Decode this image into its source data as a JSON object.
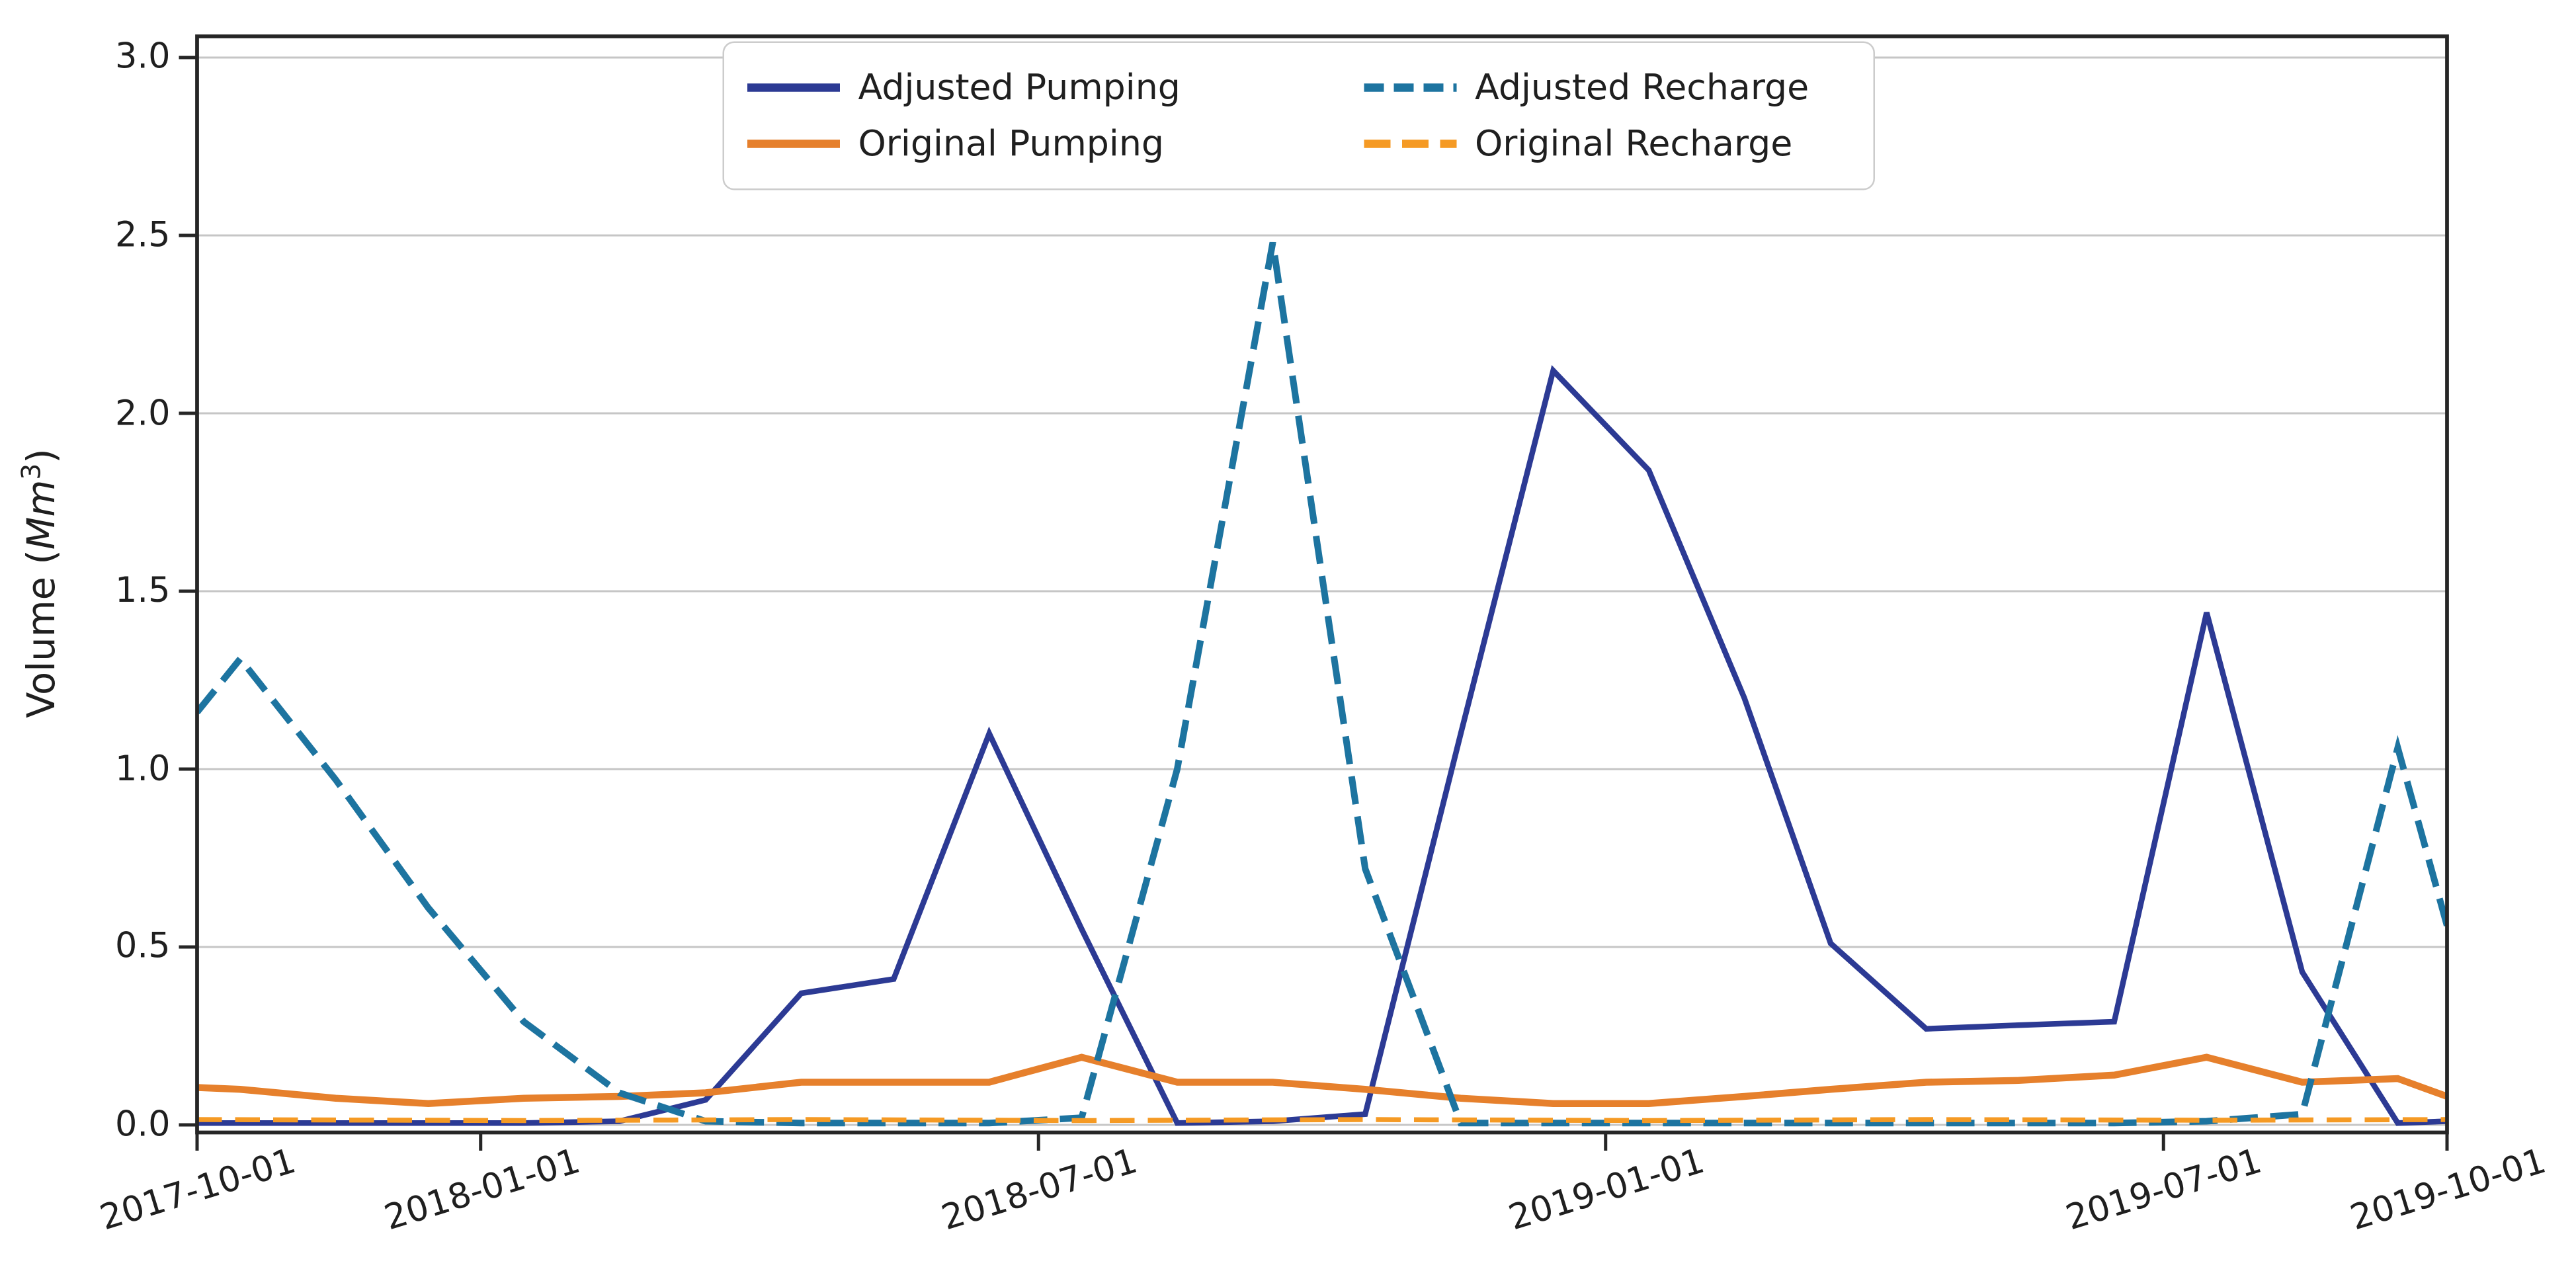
{
  "figure": {
    "background_color": "#ffffff",
    "text_color": "#1f1f1f",
    "spine_color": "#262626",
    "grid_color": "#c6c6c6"
  },
  "chart_data": {
    "type": "line",
    "title": "",
    "xlabel": "",
    "ylabel": "Volume (Mm³)",
    "ylabel_parts": {
      "prefix": "Volume (",
      "math": "Mm",
      "sup": "3",
      "suffix": ")"
    },
    "grid": "horizontal",
    "legend_position": "upper-center",
    "x_start_date": "2017-10-01",
    "x_end_date": "2019-10-01",
    "ylim": [
      -0.02,
      3.065
    ],
    "yticks": [
      {
        "label": "0.0",
        "value": 0.0
      },
      {
        "label": "0.5",
        "value": 0.5
      },
      {
        "label": "1.0",
        "value": 1.0
      },
      {
        "label": "1.5",
        "value": 1.5
      },
      {
        "label": "2.0",
        "value": 2.0
      },
      {
        "label": "2.5",
        "value": 2.5
      },
      {
        "label": "3.0",
        "value": 3.0
      }
    ],
    "xticks": [
      {
        "label": "2017-10-01",
        "date": "2017-10-01"
      },
      {
        "label": "2018-01-01",
        "date": "2018-01-01"
      },
      {
        "label": "2018-07-01",
        "date": "2018-07-01"
      },
      {
        "label": "2019-01-01",
        "date": "2019-01-01"
      },
      {
        "label": "2019-07-01",
        "date": "2019-07-01"
      },
      {
        "label": "2019-10-01",
        "date": "2019-10-01"
      }
    ],
    "series": [
      {
        "name": "Adjusted Pumping",
        "color": "#2c3a94",
        "style": "solid",
        "line_width": 3.4,
        "points": [
          [
            "2017-10-01",
            0.005
          ],
          [
            "2017-10-15",
            0.005
          ],
          [
            "2017-11-15",
            0.005
          ],
          [
            "2017-12-15",
            0.005
          ],
          [
            "2018-01-15",
            0.005
          ],
          [
            "2018-02-15",
            0.01
          ],
          [
            "2018-03-15",
            0.07
          ],
          [
            "2018-04-15",
            0.37
          ],
          [
            "2018-05-15",
            0.41
          ],
          [
            "2018-06-15",
            1.1
          ],
          [
            "2018-07-15",
            0.55
          ],
          [
            "2018-08-15",
            0.005
          ],
          [
            "2018-09-15",
            0.01
          ],
          [
            "2018-10-15",
            0.03
          ],
          [
            "2018-11-15",
            1.1
          ],
          [
            "2018-12-15",
            2.12
          ],
          [
            "2019-01-15",
            1.84
          ],
          [
            "2019-02-15",
            1.2
          ],
          [
            "2019-03-15",
            0.51
          ],
          [
            "2019-04-15",
            0.27
          ],
          [
            "2019-05-15",
            0.28
          ],
          [
            "2019-06-15",
            0.29
          ],
          [
            "2019-07-15",
            1.44
          ],
          [
            "2019-08-15",
            0.43
          ],
          [
            "2019-09-15",
            0.005
          ],
          [
            "2019-10-01",
            0.01
          ]
        ]
      },
      {
        "name": "Original Pumping",
        "color": "#e6802c",
        "style": "solid",
        "line_width": 4.2,
        "points": [
          [
            "2017-10-01",
            0.105
          ],
          [
            "2017-10-15",
            0.1
          ],
          [
            "2017-11-15",
            0.075
          ],
          [
            "2017-12-15",
            0.06
          ],
          [
            "2018-01-15",
            0.075
          ],
          [
            "2018-02-15",
            0.08
          ],
          [
            "2018-03-15",
            0.09
          ],
          [
            "2018-04-15",
            0.12
          ],
          [
            "2018-05-15",
            0.12
          ],
          [
            "2018-06-15",
            0.12
          ],
          [
            "2018-07-15",
            0.19
          ],
          [
            "2018-08-15",
            0.12
          ],
          [
            "2018-09-15",
            0.12
          ],
          [
            "2018-10-15",
            0.1
          ],
          [
            "2018-11-15",
            0.075
          ],
          [
            "2018-12-15",
            0.06
          ],
          [
            "2019-01-15",
            0.06
          ],
          [
            "2019-02-15",
            0.08
          ],
          [
            "2019-03-15",
            0.1
          ],
          [
            "2019-04-15",
            0.12
          ],
          [
            "2019-05-15",
            0.125
          ],
          [
            "2019-06-15",
            0.14
          ],
          [
            "2019-07-15",
            0.19
          ],
          [
            "2019-08-15",
            0.12
          ],
          [
            "2019-09-15",
            0.13
          ],
          [
            "2019-10-01",
            0.08
          ]
        ]
      },
      {
        "name": "Adjusted Recharge",
        "color": "#1d74a0",
        "style": "dashed",
        "line_width": 4.0,
        "points": [
          [
            "2017-10-01",
            1.16
          ],
          [
            "2017-10-15",
            1.31
          ],
          [
            "2017-11-15",
            0.97
          ],
          [
            "2017-12-15",
            0.61
          ],
          [
            "2018-01-15",
            0.29
          ],
          [
            "2018-02-15",
            0.09
          ],
          [
            "2018-03-15",
            0.01
          ],
          [
            "2018-04-15",
            0.005
          ],
          [
            "2018-05-15",
            0.005
          ],
          [
            "2018-06-15",
            0.005
          ],
          [
            "2018-07-15",
            0.02
          ],
          [
            "2018-08-15",
            1.0
          ],
          [
            "2018-09-15",
            2.48
          ],
          [
            "2018-10-15",
            0.72
          ],
          [
            "2018-11-15",
            0.005
          ],
          [
            "2018-12-15",
            0.005
          ],
          [
            "2019-01-15",
            0.005
          ],
          [
            "2019-02-15",
            0.005
          ],
          [
            "2019-03-15",
            0.005
          ],
          [
            "2019-04-15",
            0.005
          ],
          [
            "2019-05-15",
            0.005
          ],
          [
            "2019-06-15",
            0.005
          ],
          [
            "2019-07-15",
            0.01
          ],
          [
            "2019-08-15",
            0.03
          ],
          [
            "2019-09-15",
            1.06
          ],
          [
            "2019-10-01",
            0.56
          ]
        ]
      },
      {
        "name": "Original Recharge",
        "color": "#f59a24",
        "style": "dashed",
        "line_width": 3.0,
        "points": [
          [
            "2017-10-01",
            0.015
          ],
          [
            "2018-01-15",
            0.012
          ],
          [
            "2018-04-15",
            0.015
          ],
          [
            "2018-07-15",
            0.012
          ],
          [
            "2018-10-15",
            0.015
          ],
          [
            "2019-01-15",
            0.012
          ],
          [
            "2019-04-15",
            0.015
          ],
          [
            "2019-07-15",
            0.013
          ],
          [
            "2019-10-01",
            0.015
          ]
        ]
      }
    ],
    "legend_order": [
      0,
      2,
      1,
      3
    ]
  }
}
